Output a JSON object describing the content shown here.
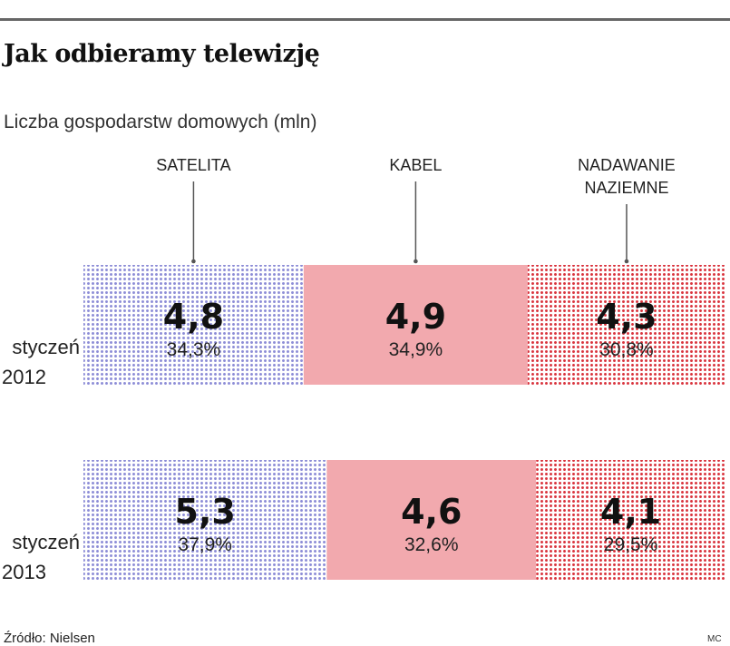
{
  "title": "Jak odbieramy telewizję",
  "subtitle": "Liczba gospodarstw domowych (mln)",
  "source": "Źródło: Nielsen",
  "credit": "MC",
  "colors": {
    "satelita": "#8c8cd6",
    "kabel": "#f2a9ae",
    "naziemne": "#d9323c",
    "stem": "#555555",
    "rule": "#666666"
  },
  "chart_data": {
    "type": "bar",
    "orientation": "horizontal",
    "stacked": true,
    "title": "Jak odbieramy telewizję",
    "subtitle": "Liczba gospodarstw domowych (mln)",
    "categories": [
      [
        "styczeń",
        "2012"
      ],
      [
        "styczeń",
        "2013"
      ]
    ],
    "series": [
      {
        "name": [
          "SATELITA"
        ],
        "values": [
          4.8,
          5.3
        ],
        "value_labels": [
          "4,8",
          "5,3"
        ],
        "shares": [
          34.3,
          37.9
        ],
        "share_labels": [
          "34,3%",
          "37,9%"
        ],
        "fill": "dotted",
        "color": "#8c8cd6"
      },
      {
        "name": [
          "KABEL"
        ],
        "values": [
          4.9,
          4.6
        ],
        "value_labels": [
          "4,9",
          "4,6"
        ],
        "shares": [
          34.9,
          32.6
        ],
        "share_labels": [
          "34,9%",
          "32,6%"
        ],
        "fill": "solid",
        "color": "#f2a9ae"
      },
      {
        "name": [
          "NADAWANIE",
          "NAZIEMNE"
        ],
        "values": [
          4.3,
          4.1
        ],
        "value_labels": [
          "4,3",
          "4,1"
        ],
        "shares": [
          30.8,
          29.5
        ],
        "share_labels": [
          "30,8%",
          "29,5%"
        ],
        "fill": "dotted",
        "color": "#d9323c"
      }
    ],
    "xlim": [
      0,
      100
    ],
    "unit": "mln",
    "grid": false,
    "legend": "top"
  }
}
